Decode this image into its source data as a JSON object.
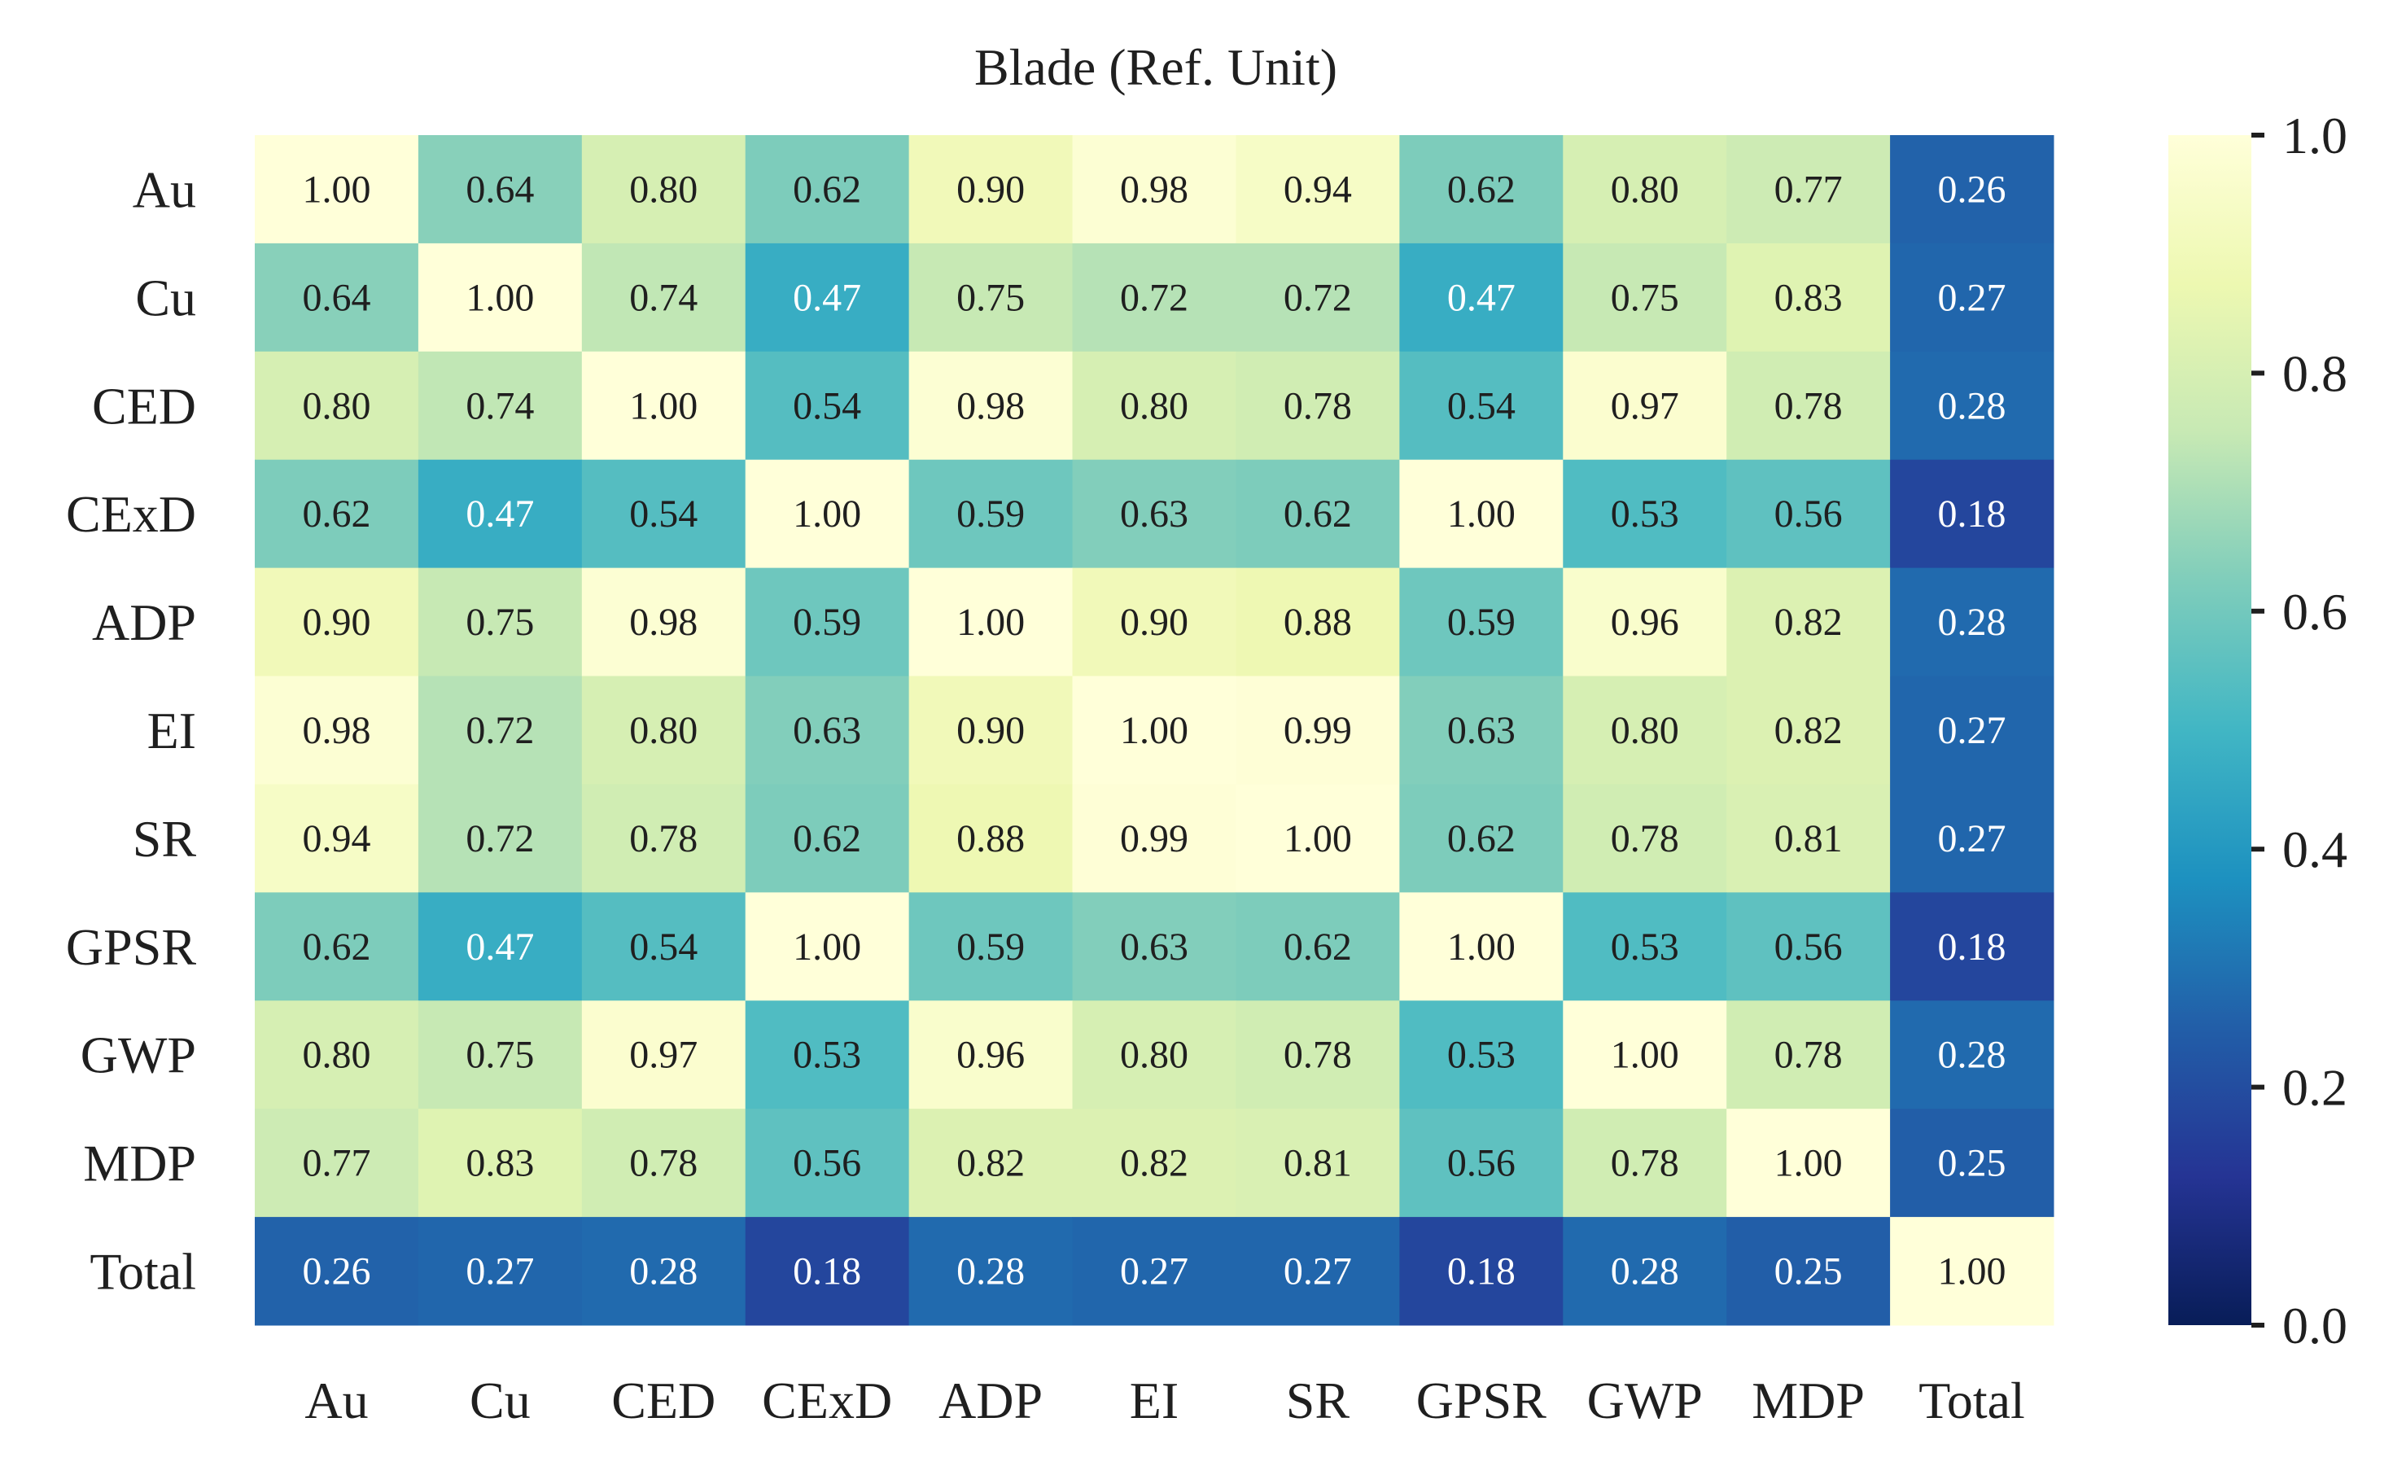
{
  "chart_data": {
    "type": "heatmap",
    "title": "Blade (Ref. Unit)",
    "xlabel": "",
    "ylabel": "",
    "rows": [
      "Au",
      "Cu",
      "CED",
      "CExD",
      "ADP",
      "EI",
      "SR",
      "GPSR",
      "GWP",
      "MDP",
      "Total"
    ],
    "columns": [
      "Au",
      "Cu",
      "CED",
      "CExD",
      "ADP",
      "EI",
      "SR",
      "GPSR",
      "GWP",
      "MDP",
      "Total"
    ],
    "values": [
      [
        1.0,
        0.64,
        0.8,
        0.62,
        0.9,
        0.98,
        0.94,
        0.62,
        0.8,
        0.77,
        0.26
      ],
      [
        0.64,
        1.0,
        0.74,
        0.47,
        0.75,
        0.72,
        0.72,
        0.47,
        0.75,
        0.83,
        0.27
      ],
      [
        0.8,
        0.74,
        1.0,
        0.54,
        0.98,
        0.8,
        0.78,
        0.54,
        0.97,
        0.78,
        0.28
      ],
      [
        0.62,
        0.47,
        0.54,
        1.0,
        0.59,
        0.63,
        0.62,
        1.0,
        0.53,
        0.56,
        0.18
      ],
      [
        0.9,
        0.75,
        0.98,
        0.59,
        1.0,
        0.9,
        0.88,
        0.59,
        0.96,
        0.82,
        0.28
      ],
      [
        0.98,
        0.72,
        0.8,
        0.63,
        0.9,
        1.0,
        0.99,
        0.63,
        0.8,
        0.82,
        0.27
      ],
      [
        0.94,
        0.72,
        0.78,
        0.62,
        0.88,
        0.99,
        1.0,
        0.62,
        0.78,
        0.81,
        0.27
      ],
      [
        0.62,
        0.47,
        0.54,
        1.0,
        0.59,
        0.63,
        0.62,
        1.0,
        0.53,
        0.56,
        0.18
      ],
      [
        0.8,
        0.75,
        0.97,
        0.53,
        0.96,
        0.8,
        0.78,
        0.53,
        1.0,
        0.78,
        0.28
      ],
      [
        0.77,
        0.83,
        0.78,
        0.56,
        0.82,
        0.82,
        0.81,
        0.56,
        0.78,
        1.0,
        0.25
      ],
      [
        0.26,
        0.27,
        0.28,
        0.18,
        0.28,
        0.27,
        0.27,
        0.18,
        0.28,
        0.25,
        1.0
      ]
    ],
    "value_format": "0.00",
    "color_scale": {
      "min": 0.0,
      "max": 1.0,
      "ticks": [
        "0.0",
        "0.2",
        "0.4",
        "0.6",
        "0.8",
        "1.0"
      ],
      "colormap": "YlGnBu",
      "stops": [
        "#081d58",
        "#253494",
        "#225ea8",
        "#1d91c0",
        "#41b6c4",
        "#7fcdbb",
        "#c7e9b4",
        "#edf8b1",
        "#ffffd9"
      ]
    },
    "grid": false,
    "legend": "colorbar-right"
  }
}
